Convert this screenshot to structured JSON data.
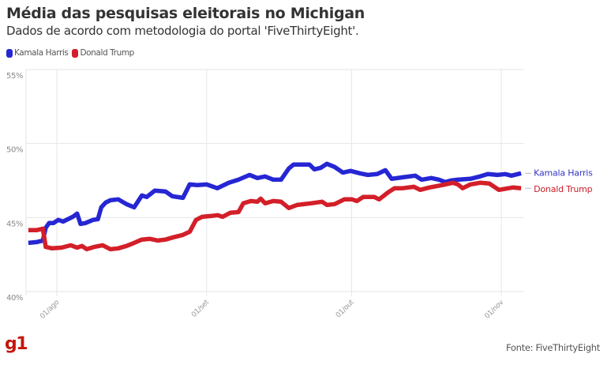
{
  "header": {
    "title": "Média das pesquisas eleitorais no Michigan",
    "subtitle": "Dados de acordo com metodologia do portal 'FiveThirtyEight'."
  },
  "legend": [
    {
      "label": "Kamala Harris",
      "color": "#2626d4"
    },
    {
      "label": "Donald Trump",
      "color": "#d31f29"
    }
  ],
  "footer": {
    "logo": "g1",
    "source": "Fonte: FiveThirtyEight"
  },
  "chart_data": {
    "type": "line",
    "title": "Média das pesquisas eleitorais no Michigan",
    "subtitle": "Dados de acordo com metodologia do portal 'FiveThirtyEight'.",
    "xlabel": "",
    "ylabel": "",
    "x_unit": "days since 01/ago",
    "xlim": [
      -6,
      96.5
    ],
    "ylim": [
      40,
      55
    ],
    "grid": true,
    "legend_position": "top-left",
    "y_ticks": [
      {
        "value": 55,
        "label": "55%"
      },
      {
        "value": 50,
        "label": "50%"
      },
      {
        "value": 45,
        "label": "45%"
      },
      {
        "value": 40,
        "label": "40%"
      }
    ],
    "x_ticks": [
      {
        "value": 0,
        "label": "01/ago"
      },
      {
        "value": 31,
        "label": "01/set"
      },
      {
        "value": 61,
        "label": "01/out"
      },
      {
        "value": 92,
        "label": "01/nov"
      }
    ],
    "series": [
      {
        "name": "Kamala Harris",
        "end_label": "Kamala Harris",
        "color": "#2626d4",
        "label_color": "#3535c4",
        "points": [
          [
            -5.9,
            43.29
          ],
          [
            -4.2,
            43.34
          ],
          [
            -2.9,
            43.45
          ],
          [
            -2.3,
            44.31
          ],
          [
            -1.6,
            44.63
          ],
          [
            -0.7,
            44.63
          ],
          [
            0.3,
            44.84
          ],
          [
            1.3,
            44.73
          ],
          [
            2.3,
            44.89
          ],
          [
            3.3,
            45.05
          ],
          [
            4.2,
            45.27
          ],
          [
            4.9,
            44.57
          ],
          [
            5.9,
            44.63
          ],
          [
            7.5,
            44.84
          ],
          [
            8.5,
            44.89
          ],
          [
            9.2,
            45.69
          ],
          [
            10.1,
            46.01
          ],
          [
            11.1,
            46.17
          ],
          [
            12.7,
            46.23
          ],
          [
            14.4,
            45.91
          ],
          [
            16.0,
            45.69
          ],
          [
            17.6,
            46.49
          ],
          [
            18.6,
            46.39
          ],
          [
            20.3,
            46.82
          ],
          [
            22.5,
            46.76
          ],
          [
            23.9,
            46.44
          ],
          [
            26.1,
            46.33
          ],
          [
            27.5,
            47.24
          ],
          [
            29.1,
            47.19
          ],
          [
            31.0,
            47.24
          ],
          [
            33.2,
            46.98
          ],
          [
            35.6,
            47.35
          ],
          [
            37.6,
            47.56
          ],
          [
            39.9,
            47.88
          ],
          [
            41.5,
            47.67
          ],
          [
            43.1,
            47.78
          ],
          [
            44.8,
            47.56
          ],
          [
            46.4,
            47.56
          ],
          [
            48.0,
            48.31
          ],
          [
            49.0,
            48.58
          ],
          [
            52.3,
            48.58
          ],
          [
            53.3,
            48.26
          ],
          [
            54.6,
            48.36
          ],
          [
            55.9,
            48.63
          ],
          [
            57.5,
            48.42
          ],
          [
            59.2,
            48.04
          ],
          [
            60.8,
            48.15
          ],
          [
            62.7,
            47.99
          ],
          [
            64.4,
            47.88
          ],
          [
            66.3,
            47.94
          ],
          [
            68.0,
            48.2
          ],
          [
            69.3,
            47.62
          ],
          [
            71.6,
            47.72
          ],
          [
            74.2,
            47.83
          ],
          [
            75.5,
            47.56
          ],
          [
            77.5,
            47.67
          ],
          [
            79.1,
            47.56
          ],
          [
            80.4,
            47.4
          ],
          [
            81.7,
            47.51
          ],
          [
            83.0,
            47.56
          ],
          [
            85.6,
            47.62
          ],
          [
            87.6,
            47.78
          ],
          [
            89.2,
            47.94
          ],
          [
            91.2,
            47.88
          ],
          [
            92.8,
            47.94
          ],
          [
            94.1,
            47.83
          ],
          [
            96.1,
            47.99
          ]
        ]
      },
      {
        "name": "Donald Trump",
        "end_label": "Donald Trump",
        "color": "#d31f29",
        "label_color": "#c8202a",
        "points": [
          [
            -5.9,
            44.15
          ],
          [
            -4.2,
            44.15
          ],
          [
            -2.9,
            44.25
          ],
          [
            -2.3,
            43.02
          ],
          [
            -1.0,
            42.92
          ],
          [
            1.0,
            42.97
          ],
          [
            2.9,
            43.13
          ],
          [
            4.2,
            42.97
          ],
          [
            5.2,
            43.08
          ],
          [
            6.2,
            42.86
          ],
          [
            7.8,
            43.02
          ],
          [
            9.5,
            43.13
          ],
          [
            11.1,
            42.86
          ],
          [
            12.7,
            42.92
          ],
          [
            14.4,
            43.08
          ],
          [
            16.0,
            43.29
          ],
          [
            17.6,
            43.51
          ],
          [
            19.3,
            43.56
          ],
          [
            20.9,
            43.45
          ],
          [
            22.5,
            43.51
          ],
          [
            24.2,
            43.67
          ],
          [
            26.1,
            43.83
          ],
          [
            27.5,
            44.04
          ],
          [
            28.8,
            44.84
          ],
          [
            30.1,
            45.05
          ],
          [
            32.0,
            45.11
          ],
          [
            33.3,
            45.16
          ],
          [
            34.3,
            45.05
          ],
          [
            35.9,
            45.32
          ],
          [
            37.6,
            45.37
          ],
          [
            38.6,
            45.96
          ],
          [
            40.2,
            46.12
          ],
          [
            41.5,
            46.07
          ],
          [
            42.2,
            46.28
          ],
          [
            43.1,
            45.96
          ],
          [
            44.8,
            46.12
          ],
          [
            46.4,
            46.07
          ],
          [
            48.0,
            45.64
          ],
          [
            49.7,
            45.85
          ],
          [
            52.6,
            45.96
          ],
          [
            54.9,
            46.07
          ],
          [
            55.9,
            45.85
          ],
          [
            57.5,
            45.91
          ],
          [
            59.5,
            46.23
          ],
          [
            61.1,
            46.23
          ],
          [
            62.1,
            46.12
          ],
          [
            63.4,
            46.39
          ],
          [
            65.7,
            46.39
          ],
          [
            66.7,
            46.23
          ],
          [
            68.6,
            46.71
          ],
          [
            69.9,
            46.98
          ],
          [
            71.6,
            46.98
          ],
          [
            73.9,
            47.08
          ],
          [
            75.2,
            46.87
          ],
          [
            77.1,
            47.03
          ],
          [
            79.7,
            47.19
          ],
          [
            82.0,
            47.35
          ],
          [
            83.0,
            47.24
          ],
          [
            84.0,
            46.98
          ],
          [
            85.6,
            47.24
          ],
          [
            87.6,
            47.35
          ],
          [
            89.5,
            47.3
          ],
          [
            91.5,
            46.87
          ],
          [
            93.5,
            46.98
          ],
          [
            94.4,
            47.03
          ],
          [
            96.1,
            46.98
          ]
        ]
      }
    ]
  }
}
